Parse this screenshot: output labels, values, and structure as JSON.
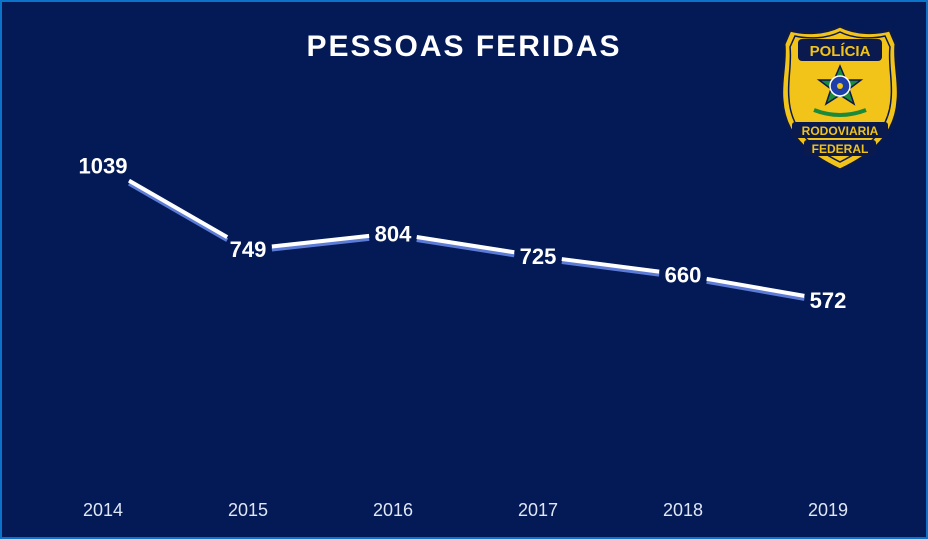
{
  "chart_data": {
    "type": "line",
    "title": "PESSOAS FERIDAS",
    "categories": [
      "2014",
      "2015",
      "2016",
      "2017",
      "2018",
      "2019"
    ],
    "values": [
      1039,
      749,
      804,
      725,
      660,
      572
    ],
    "xlabel": "",
    "ylabel": "",
    "grid": false,
    "legend": "none"
  },
  "logo": {
    "top_text": "POLÍCIA",
    "middle_text": "RODOVIARIA",
    "bottom_text": "FEDERAL"
  },
  "colors": {
    "background": "#041a57",
    "border": "#0b73c9",
    "line": "#ffffff",
    "line_shadow": "#5b7bd6",
    "text": "#ffffff",
    "badge_gold": "#f2c318"
  }
}
